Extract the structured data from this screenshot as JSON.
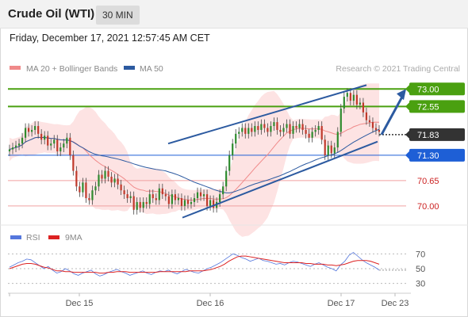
{
  "header": {
    "title": "Crude Oil (WTI)",
    "timeframe": "30 MIN",
    "datetime": "Friday, December 17, 2021 12:57:45 AM CET"
  },
  "colors": {
    "bollinger": "#f08a8a",
    "ma50": "#2c5aa0",
    "resistance": "#4aa010",
    "support": "#1e5fd6",
    "current": "#333333",
    "pivot_line": "#f0a0a0",
    "channel": "#2c5aa0",
    "rsi": "#5577dd",
    "rsi_ma": "#dd2222"
  },
  "chart_data": [
    {
      "type": "candlestick",
      "legend": [
        {
          "label": "MA 20 + Bollinger Bands",
          "color": "#f08a8a"
        },
        {
          "label": "MA 50",
          "color": "#2c5aa0"
        }
      ],
      "watermark": "Research © 2021 Trading Central",
      "x_ticks": [
        "Dec 15",
        "Dec 16",
        "Dec 17",
        "Dec 23"
      ],
      "ylim": [
        69.55,
        73.25
      ],
      "levels": [
        {
          "value": 73.0,
          "label": "73.00",
          "kind": "resistance"
        },
        {
          "value": 72.55,
          "label": "72.55",
          "kind": "resistance"
        },
        {
          "value": 71.83,
          "label": "71.83",
          "kind": "current"
        },
        {
          "value": 71.3,
          "label": "71.30",
          "kind": "support"
        },
        {
          "value": 70.65,
          "label": "70.65",
          "kind": "minor"
        },
        {
          "value": 70.0,
          "label": "70.00",
          "kind": "minor"
        }
      ],
      "channel": {
        "upper": [
          [
            0,
            71.6
          ],
          [
            1,
            73.1
          ]
        ],
        "lower": [
          [
            0,
            69.7
          ],
          [
            1,
            71.65
          ]
        ]
      },
      "ohlc_close": [
        71.45,
        71.5,
        71.55,
        71.6,
        71.75,
        72.0,
        71.9,
        71.95,
        72.05,
        71.85,
        71.7,
        71.8,
        71.55,
        71.6,
        71.7,
        71.4,
        71.5,
        71.6,
        71.75,
        71.3,
        70.9,
        70.5,
        70.35,
        70.6,
        70.2,
        70.15,
        70.4,
        70.5,
        70.8,
        70.7,
        70.9,
        70.75,
        70.6,
        70.7,
        70.55,
        70.4,
        70.3,
        70.2,
        70.25,
        69.9,
        70.1,
        69.95,
        70.1,
        70.05,
        70.3,
        70.2,
        70.15,
        70.45,
        70.3,
        70.25,
        70.05,
        70.3,
        70.15,
        70.2,
        70.0,
        70.15,
        70.05,
        70.1,
        70.2,
        70.35,
        70.25,
        70.3,
        70.0,
        70.15,
        69.95,
        70.1,
        70.3,
        70.5,
        70.9,
        71.3,
        71.6,
        71.85,
        71.9,
        72.0,
        71.85,
        72.0,
        71.9,
        72.05,
        71.95,
        72.1,
        72.0,
        71.9,
        72.05,
        72.15,
        71.95,
        71.9,
        72.0,
        72.1,
        71.85,
        72.05,
        72.0,
        72.1,
        71.95,
        71.85,
        71.75,
        71.9,
        71.95,
        72.05,
        71.7,
        71.3,
        71.55,
        71.35,
        71.5,
        71.9,
        72.5,
        72.8,
        72.9,
        72.7,
        72.85,
        72.6,
        72.65,
        72.4,
        72.2,
        72.15,
        72.0,
        71.95,
        71.9
      ],
      "mid_band_color": "#f08a8a"
    },
    {
      "type": "line",
      "legend": [
        {
          "label": "RSI",
          "color": "#5577dd"
        },
        {
          "label": "9MA",
          "color": "#dd2222"
        }
      ],
      "ylim": [
        20,
        80
      ],
      "y_ticks": [
        "70",
        "50",
        "30"
      ],
      "x_ticks": [
        "Dec 15",
        "Dec 16",
        "Dec 17",
        "Dec 23"
      ],
      "series": [
        {
          "name": "RSI",
          "values": [
            52,
            55,
            58,
            60,
            63,
            62,
            58,
            54,
            50,
            53,
            48,
            44,
            46,
            50,
            47,
            43,
            41,
            44,
            46,
            48,
            43,
            40,
            42,
            45,
            47,
            49,
            46,
            44,
            41,
            43,
            45,
            47,
            44,
            42,
            45,
            47,
            46,
            48,
            45,
            43,
            46,
            49,
            47,
            45,
            44,
            47,
            50,
            52,
            55,
            58,
            62,
            66,
            70,
            68,
            65,
            63,
            60,
            62,
            64,
            61,
            60,
            58,
            56,
            57,
            55,
            58,
            60,
            59,
            57,
            55,
            53,
            56,
            58,
            55,
            52,
            50,
            47,
            55,
            60,
            68,
            72,
            67,
            62,
            58,
            55,
            52,
            48
          ]
        },
        {
          "name": "9MA",
          "values": [
            50,
            52,
            54,
            56,
            57,
            57,
            56,
            54,
            52,
            51,
            49,
            47,
            47,
            46,
            46,
            45,
            45,
            45,
            45,
            45,
            45,
            44,
            44,
            45,
            45,
            46,
            46,
            46,
            45,
            45,
            45,
            45,
            45,
            45,
            45,
            46,
            46,
            46,
            46,
            46,
            46,
            46,
            47,
            47,
            47,
            47,
            48,
            49,
            51,
            53,
            56,
            60,
            63,
            66,
            67,
            67,
            66,
            65,
            64,
            63,
            62,
            61,
            60,
            59,
            58,
            58,
            58,
            58,
            58,
            57,
            57,
            56,
            56,
            56,
            55,
            55,
            54,
            55,
            56,
            58,
            60,
            61,
            61,
            61,
            60,
            58,
            56
          ]
        }
      ]
    }
  ]
}
